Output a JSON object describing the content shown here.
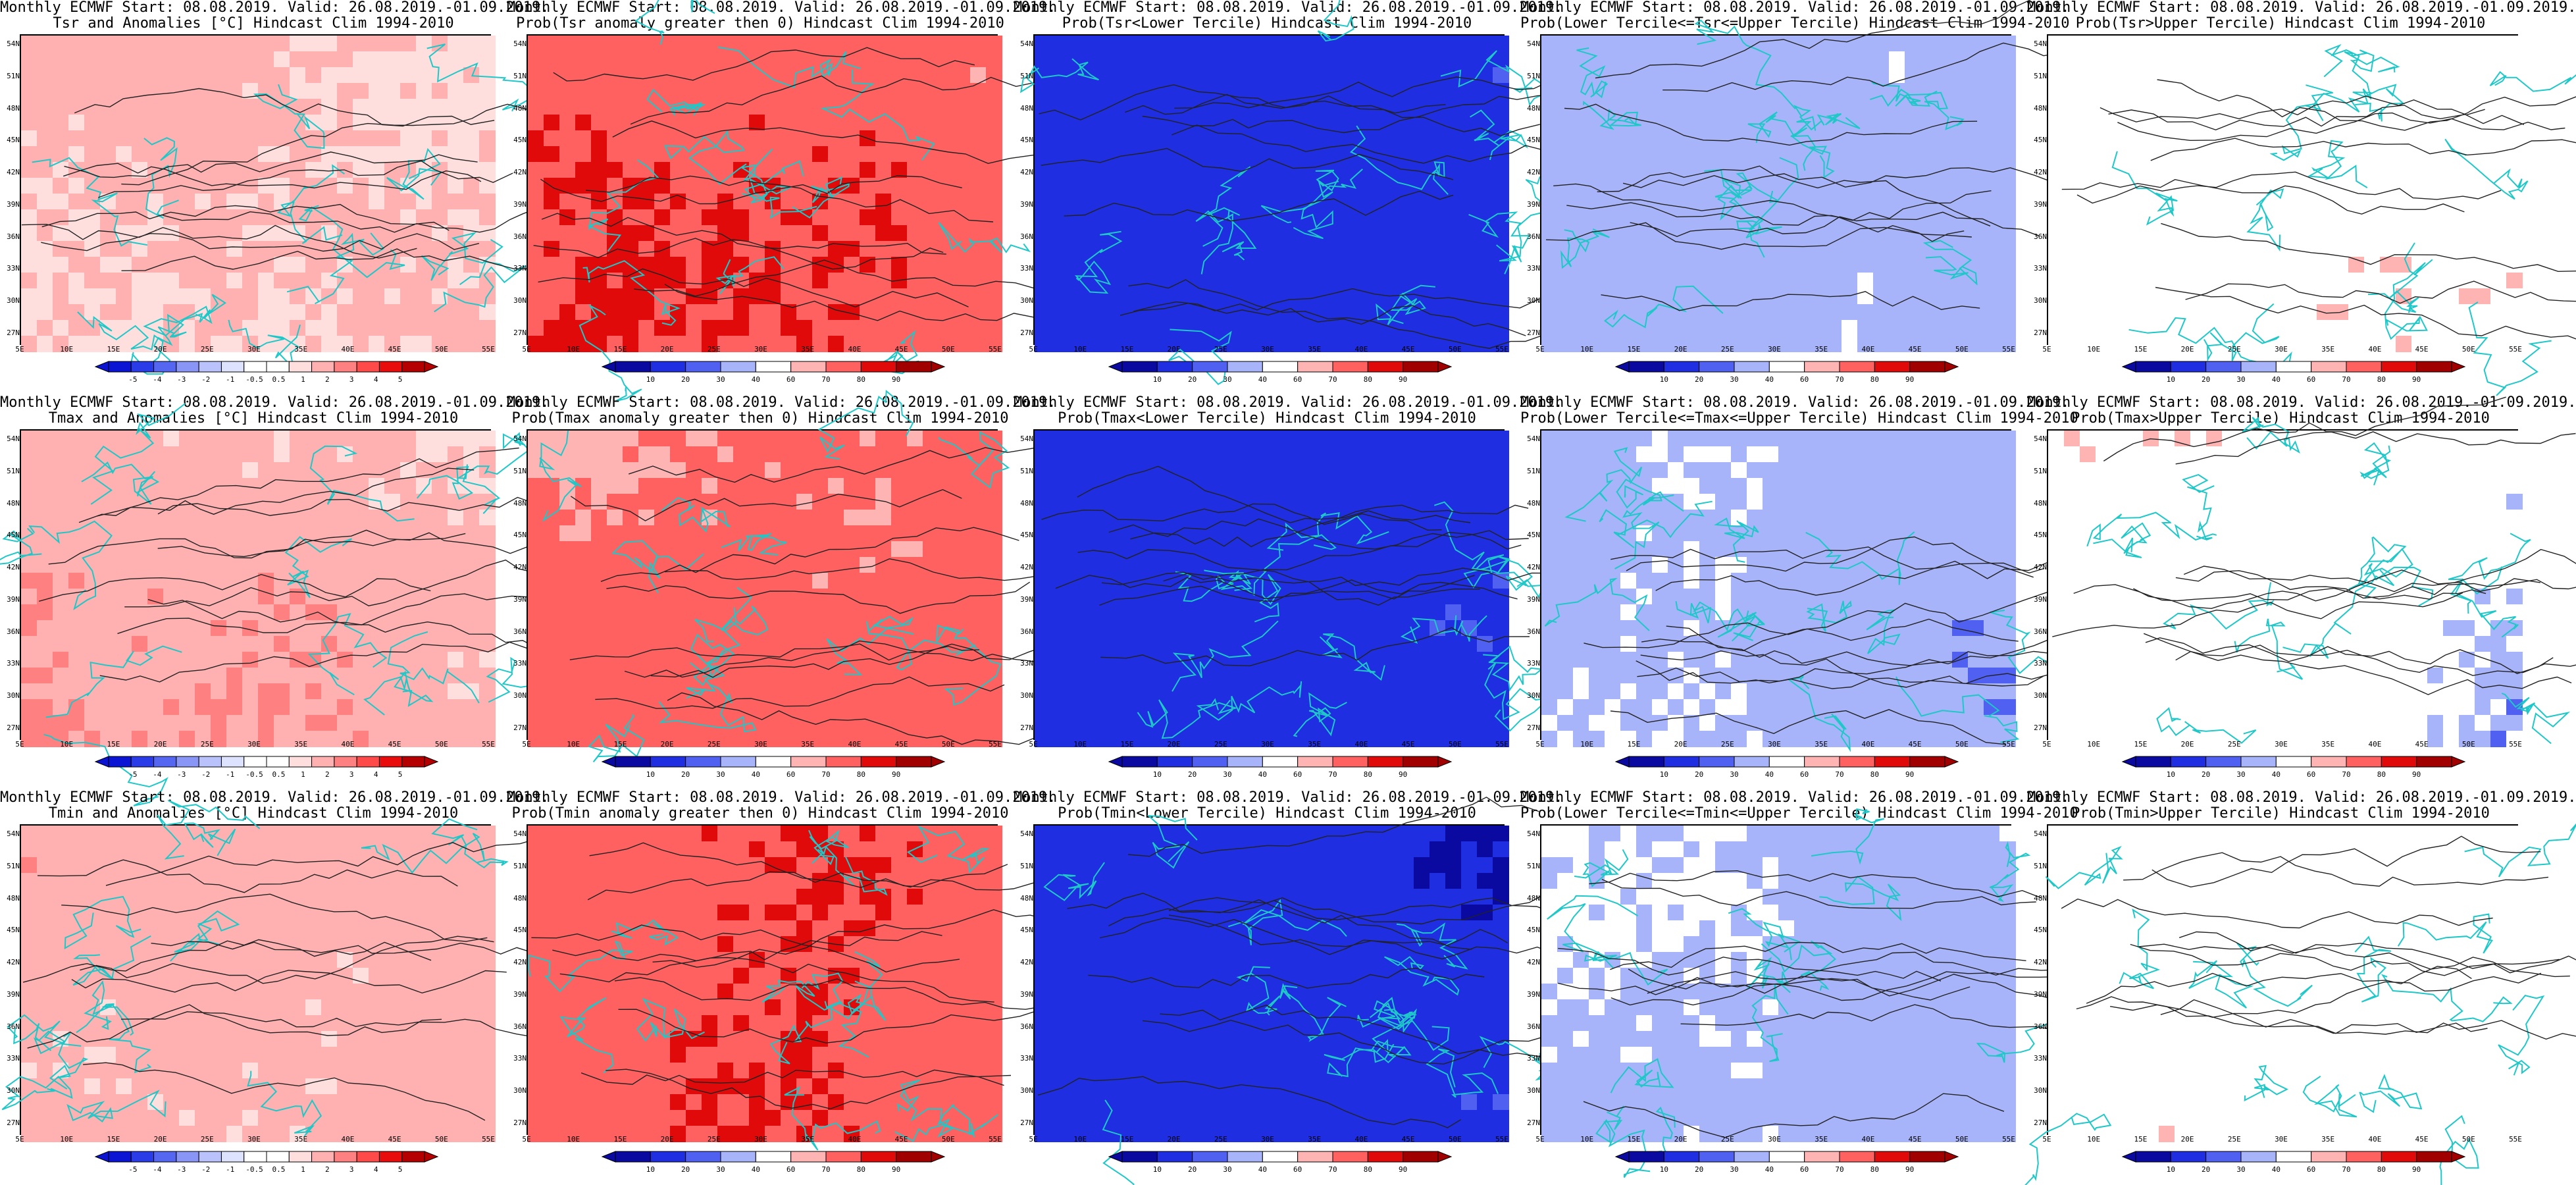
{
  "colors": {
    "ocean": "#ffffff",
    "coast": "#1ec8c8",
    "contour": "#222222",
    "anomaly_palette": [
      "#0a14d2",
      "#2a3ce8",
      "#5566f0",
      "#8a96f5",
      "#b9c2fa",
      "#dde3ff",
      "#ffffff",
      "#ffffff",
      "#ffdede",
      "#ffb0b0",
      "#ff8080",
      "#ff4a4a",
      "#e80c0c",
      "#b40000"
    ],
    "prob_palette": [
      "#0a0aa0",
      "#1e2ee0",
      "#5060f0",
      "#a8b4fa",
      "#ffffff",
      "#ffb4b4",
      "#ff6060",
      "#e00a0a",
      "#a00000"
    ]
  },
  "axes": {
    "lat_labels": [
      "54N",
      "51N",
      "48N",
      "45N",
      "42N",
      "39N",
      "36N",
      "33N",
      "30N",
      "27N"
    ],
    "lon_labels": [
      "5E",
      "10E",
      "15E",
      "20E",
      "25E",
      "30E",
      "35E",
      "40E",
      "45E",
      "50E",
      "55E"
    ]
  },
  "colorbars": {
    "anomaly_ticks": [
      "-5",
      "-4",
      "-3",
      "-2",
      "-1",
      "-0.5",
      "0.5",
      "1",
      "2",
      "3",
      "4",
      "5"
    ],
    "prob_ticks": [
      "10",
      "20",
      "30",
      "40",
      "60",
      "70",
      "80",
      "90"
    ]
  },
  "panels": [
    {
      "id": "tsr-anom",
      "line1": "Monthly ECMWF Start: 08.08.2019. Valid: 26.08.2019.-01.09.2019.",
      "line2": "Tsr and Anomalies [°C] Hindcast Clim 1994-2010",
      "scheme": "anom-light",
      "cbar": "anomaly"
    },
    {
      "id": "tsr-prob-pos",
      "line1": "Monthly ECMWF Start: 08.08.2019. Valid: 26.08.2019.-01.09.2019.",
      "line2": "Prob(Tsr anomaly greater then 0) Hindcast Clim 1994-2010",
      "scheme": "red",
      "cbar": "prob"
    },
    {
      "id": "tsr-prob-lower",
      "line1": "Monthly ECMWF Start: 08.08.2019. Valid: 26.08.2019.-01.09.2019.",
      "line2": "Prob(Tsr<Lower Tercile) Hindcast Clim 1994-2010",
      "scheme": "blue",
      "cbar": "prob"
    },
    {
      "id": "tsr-prob-middle",
      "line1": "Monthly ECMWF Start: 08.08.2019. Valid: 26.08.2019.-01.09.2019.",
      "line2": "Prob(Lower Tercile<=Tsr<=Upper Tercile) Hindcast Clim 1994-2010",
      "scheme": "lightblue",
      "cbar": "prob"
    },
    {
      "id": "tsr-prob-upper",
      "line1": "Monthly ECMWF Start: 08.08.2019. Valid: 26.08.2019.-01.09.2019.",
      "line2": "Prob(Tsr>Upper Tercile) Hindcast Clim 1994-2010",
      "scheme": "mixed",
      "cbar": "prob"
    },
    {
      "id": "tmax-anom",
      "line1": "Monthly ECMWF Start: 08.08.2019. Valid: 26.08.2019.-01.09.2019.",
      "line2": "Tmax and Anomalies [°C] Hindcast Clim 1994-2010",
      "scheme": "anom",
      "cbar": "anomaly"
    },
    {
      "id": "tmax-prob-pos",
      "line1": "Monthly ECMWF Start: 08.08.2019. Valid: 26.08.2019.-01.09.2019.",
      "line2": "Prob(Tmax anomaly greater then 0) Hindcast Clim 1994-2010",
      "scheme": "red",
      "cbar": "prob"
    },
    {
      "id": "tmax-prob-lower",
      "line1": "Monthly ECMWF Start: 08.08.2019. Valid: 26.08.2019.-01.09.2019.",
      "line2": "Prob(Tmax<Lower Tercile) Hindcast Clim 1994-2010",
      "scheme": "blue",
      "cbar": "prob"
    },
    {
      "id": "tmax-prob-middle",
      "line1": "Monthly ECMWF Start: 08.08.2019. Valid: 26.08.2019.-01.09.2019.",
      "line2": "Prob(Lower Tercile<=Tmax<=Upper Tercile) Hindcast Clim 1994-2010",
      "scheme": "lightblue",
      "cbar": "prob"
    },
    {
      "id": "tmax-prob-upper",
      "line1": "Monthly ECMWF Start: 08.08.2019. Valid: 26.08.2019.-01.09.2019.",
      "line2": "Prob(Tmax>Upper Tercile) Hindcast Clim 1994-2010",
      "scheme": "mixed",
      "cbar": "prob"
    },
    {
      "id": "tmin-anom",
      "line1": "Monthly ECMWF Start: 08.08.2019. Valid: 26.08.2019.-01.09.2019.",
      "line2": "Tmin and Anomalies [°C] Hindcast Clim 1994-2010",
      "scheme": "anom-light",
      "cbar": "anomaly"
    },
    {
      "id": "tmin-prob-pos",
      "line1": "Monthly ECMWF Start: 08.08.2019. Valid: 26.08.2019.-01.09.2019.",
      "line2": "Prob(Tmin anomaly greater then 0) Hindcast Clim 1994-2010",
      "scheme": "red",
      "cbar": "prob"
    },
    {
      "id": "tmin-prob-lower",
      "line1": "Monthly ECMWF Start: 08.08.2019. Valid: 26.08.2019.-01.09.2019.",
      "line2": "Prob(Tmin<Lower Tercile) Hindcast Clim 1994-2010",
      "scheme": "blue",
      "cbar": "prob"
    },
    {
      "id": "tmin-prob-middle",
      "line1": "Monthly ECMWF Start: 08.08.2019. Valid: 26.08.2019.-01.09.2019.",
      "line2": "Prob(Lower Tercile<=Tmin<=Upper Tercile) Hindcast Clim 1994-2010",
      "scheme": "lightblue",
      "cbar": "prob"
    },
    {
      "id": "tmin-prob-upper",
      "line1": "Monthly ECMWF Start: 08.08.2019. Valid: 26.08.2019.-01.09.2019.",
      "line2": "Prob(Tmin>Upper Tercile) Hindcast Clim 1994-2010",
      "scheme": "mixed",
      "cbar": "prob"
    }
  ]
}
